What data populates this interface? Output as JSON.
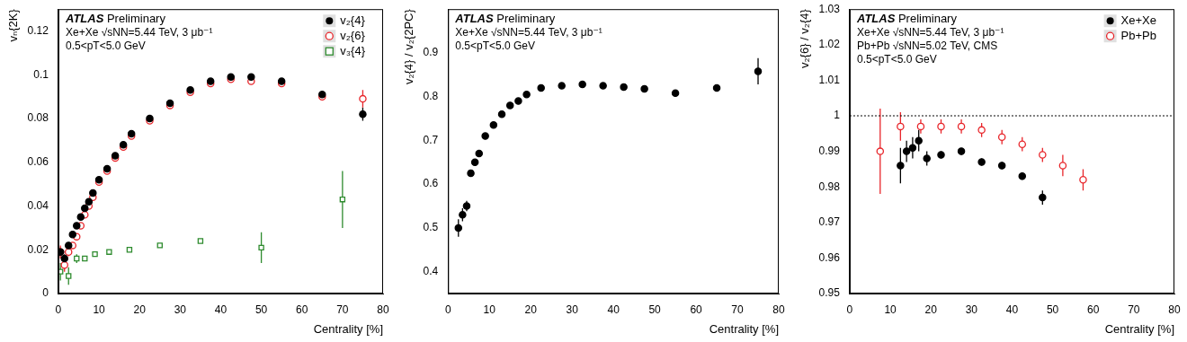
{
  "chart_data": [
    {
      "type": "scatter",
      "x_label": "Centrality [%]",
      "y_label": "vₙ{2K}",
      "xlim": [
        0,
        80
      ],
      "xticks": [
        0,
        10,
        20,
        30,
        40,
        50,
        60,
        70,
        80
      ],
      "ylim": [
        0,
        0.13
      ],
      "yticks": [
        0,
        0.02,
        0.04,
        0.06,
        0.08,
        0.1,
        0.12
      ],
      "grid": false,
      "legend": "top right",
      "annotations": [
        "ATLAS Preliminary",
        "Xe+Xe √sNN=5.44 TeV, 3 μb⁻¹",
        "0.5<pT<5.0 GeV"
      ],
      "series": [
        {
          "name": "v₂{4}",
          "color": "#000000",
          "marker": "circle",
          "x": [
            0.5,
            1.5,
            2.5,
            3.5,
            4.5,
            5.5,
            6.5,
            7.5,
            8.5,
            10,
            12,
            14,
            16,
            18,
            22.5,
            27.5,
            32.5,
            37.5,
            42.5,
            47.5,
            55,
            65,
            75
          ],
          "values": [
            0.019,
            0.016,
            0.022,
            0.027,
            0.031,
            0.035,
            0.039,
            0.042,
            0.046,
            0.052,
            0.057,
            0.063,
            0.068,
            0.073,
            0.08,
            0.087,
            0.093,
            0.097,
            0.099,
            0.099,
            0.097,
            0.091,
            0.082
          ],
          "errors": [
            0.002,
            0.002,
            0.001,
            0.001,
            0.001,
            0.001,
            0.001,
            0.001,
            0.001,
            0.001,
            0.001,
            0.001,
            0.001,
            0.001,
            0.001,
            0.001,
            0.001,
            0.001,
            0.001,
            0.001,
            0.001,
            0.001,
            0.003
          ]
        },
        {
          "name": "v₂{6}",
          "color": "#e8262b",
          "marker": "open_circle",
          "x": [
            0.5,
            1.5,
            2.5,
            3.5,
            4.5,
            5.5,
            6.5,
            7.5,
            8.5,
            10,
            12,
            14,
            16,
            18,
            22.5,
            27.5,
            32.5,
            37.5,
            42.5,
            47.5,
            55,
            65,
            75
          ],
          "values": [
            0.019,
            0.013,
            0.019,
            0.022,
            0.026,
            0.031,
            0.036,
            0.04,
            0.044,
            0.051,
            0.056,
            0.062,
            0.067,
            0.072,
            0.079,
            0.086,
            0.092,
            0.096,
            0.098,
            0.097,
            0.096,
            0.09,
            0.089
          ],
          "errors": [
            0.003,
            0.003,
            0.002,
            0.001,
            0.001,
            0.001,
            0.001,
            0.001,
            0.001,
            0.001,
            0.001,
            0.001,
            0.001,
            0.001,
            0.001,
            0.001,
            0.001,
            0.001,
            0.001,
            0.001,
            0.001,
            0.001,
            0.004
          ]
        },
        {
          "name": "v₃{4}",
          "color": "#2e8b2e",
          "marker": "open_square",
          "x": [
            0.5,
            2.5,
            4.5,
            6.5,
            9,
            12.5,
            17.5,
            25,
            35,
            50,
            70
          ],
          "values": [
            0.01,
            0.008,
            0.016,
            0.016,
            0.018,
            0.019,
            0.02,
            0.022,
            0.024,
            0.021,
            0.043
          ],
          "errors": [
            0.004,
            0.004,
            0.002,
            0.001,
            0.001,
            0.001,
            0.001,
            0.001,
            0.001,
            0.007,
            0.013
          ]
        }
      ]
    },
    {
      "type": "scatter",
      "x_label": "Centrality [%]",
      "y_label": "v₂{4} / v₂{2PC}",
      "xlim": [
        0,
        80
      ],
      "xticks": [
        0,
        10,
        20,
        30,
        40,
        50,
        60,
        70,
        80
      ],
      "ylim": [
        0.35,
        1.0
      ],
      "yticks": [
        0.4,
        0.5,
        0.6,
        0.7,
        0.8,
        0.9
      ],
      "grid": false,
      "annotations": [
        "ATLAS Preliminary",
        "Xe+Xe √sNN=5.44 TeV, 3 μb⁻¹",
        "0.5<pT<5.0 GeV"
      ],
      "series": [
        {
          "color": "#000000",
          "marker": "circle",
          "x": [
            2.5,
            3.5,
            4.5,
            5.5,
            6.5,
            7.5,
            9,
            11,
            13,
            15,
            17,
            19,
            22.5,
            27.5,
            32.5,
            37.5,
            42.5,
            47.5,
            55,
            65,
            75
          ],
          "values": [
            0.5,
            0.53,
            0.55,
            0.625,
            0.65,
            0.67,
            0.71,
            0.735,
            0.76,
            0.78,
            0.79,
            0.805,
            0.82,
            0.825,
            0.828,
            0.825,
            0.822,
            0.818,
            0.808,
            0.82,
            0.858
          ],
          "errors": [
            0.02,
            0.015,
            0.012,
            0.008,
            0.006,
            0.005,
            0.005,
            0.004,
            0.004,
            0.004,
            0.004,
            0.004,
            0.004,
            0.004,
            0.004,
            0.004,
            0.004,
            0.004,
            0.004,
            0.005,
            0.03
          ]
        }
      ]
    },
    {
      "type": "scatter",
      "x_label": "Centrality [%]",
      "y_label": "v₂{6} / v₂{4}",
      "xlim": [
        0,
        80
      ],
      "xticks": [
        0,
        10,
        20,
        30,
        40,
        50,
        60,
        70,
        80
      ],
      "ylim": [
        0.95,
        1.03
      ],
      "yticks": [
        0.95,
        0.96,
        0.97,
        0.98,
        0.99,
        1,
        1.01,
        1.02,
        1.03
      ],
      "grid": false,
      "legend": "top right",
      "reference_line": 1,
      "annotations": [
        "ATLAS Preliminary",
        "Xe+Xe √sNN=5.44 TeV, 3 μb⁻¹",
        "Pb+Pb √sNN=5.02 TeV, CMS",
        "0.5<pT<5.0 GeV"
      ],
      "series": [
        {
          "name": "Xe+Xe",
          "color": "#000000",
          "marker": "circle",
          "x": [
            12.5,
            14,
            15.5,
            17,
            19,
            22.5,
            27.5,
            32.5,
            37.5,
            42.5,
            47.5
          ],
          "values": [
            0.986,
            0.99,
            0.991,
            0.993,
            0.988,
            0.989,
            0.99,
            0.987,
            0.986,
            0.983,
            0.977
          ],
          "errors": [
            0.005,
            0.003,
            0.003,
            0.003,
            0.002,
            0.001,
            0.001,
            0.001,
            0.001,
            0.001,
            0.002
          ]
        },
        {
          "name": "Pb+Pb",
          "color": "#e8262b",
          "marker": "open_circle",
          "x": [
            7.5,
            12.5,
            17.5,
            22.5,
            27.5,
            32.5,
            37.5,
            42.5,
            47.5,
            52.5,
            57.5
          ],
          "values": [
            0.99,
            0.997,
            0.997,
            0.997,
            0.997,
            0.996,
            0.994,
            0.992,
            0.989,
            0.986,
            0.982
          ],
          "errors": [
            0.012,
            0.004,
            0.002,
            0.002,
            0.002,
            0.002,
            0.002,
            0.002,
            0.002,
            0.003,
            0.003
          ]
        }
      ]
    }
  ]
}
